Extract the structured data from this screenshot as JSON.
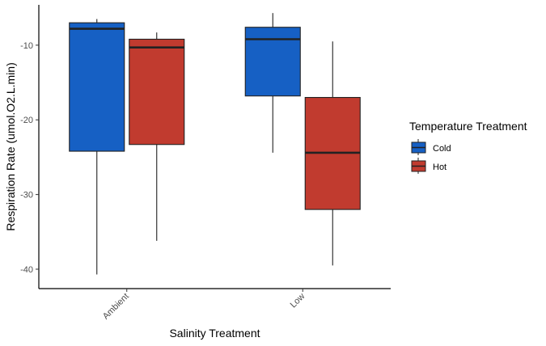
{
  "chart_data": {
    "type": "boxplot",
    "title": "",
    "xlabel": "Salinity Treatment",
    "ylabel": "Respiration Rate (umol.O2.L.min)",
    "ylim": [
      -42.6,
      -4.6
    ],
    "yticks": [
      -10,
      -20,
      -30,
      -40
    ],
    "ytick_labels": [
      "-10",
      "-20",
      "-30",
      "-40"
    ],
    "categories": [
      "Ambient",
      "Low"
    ],
    "grid": false,
    "legend": {
      "title": "Temperature Treatment",
      "position": "right"
    },
    "series": [
      {
        "name": "Cold",
        "color": "#1660c4",
        "boxes": [
          {
            "category": "Ambient",
            "min": -40.7,
            "q1": -24.2,
            "median": -7.8,
            "q3": -7.0,
            "max": -6.5
          },
          {
            "category": "Low",
            "min": -24.4,
            "q1": -16.8,
            "median": -9.2,
            "q3": -7.6,
            "max": -5.7
          }
        ]
      },
      {
        "name": "Hot",
        "color": "#c13b2f",
        "boxes": [
          {
            "category": "Ambient",
            "min": -36.2,
            "q1": -23.3,
            "median": -10.3,
            "q3": -9.2,
            "max": -8.3
          },
          {
            "category": "Low",
            "min": -39.5,
            "q1": -32.0,
            "median": -24.4,
            "q3": -17.0,
            "max": -9.5
          }
        ]
      }
    ]
  }
}
